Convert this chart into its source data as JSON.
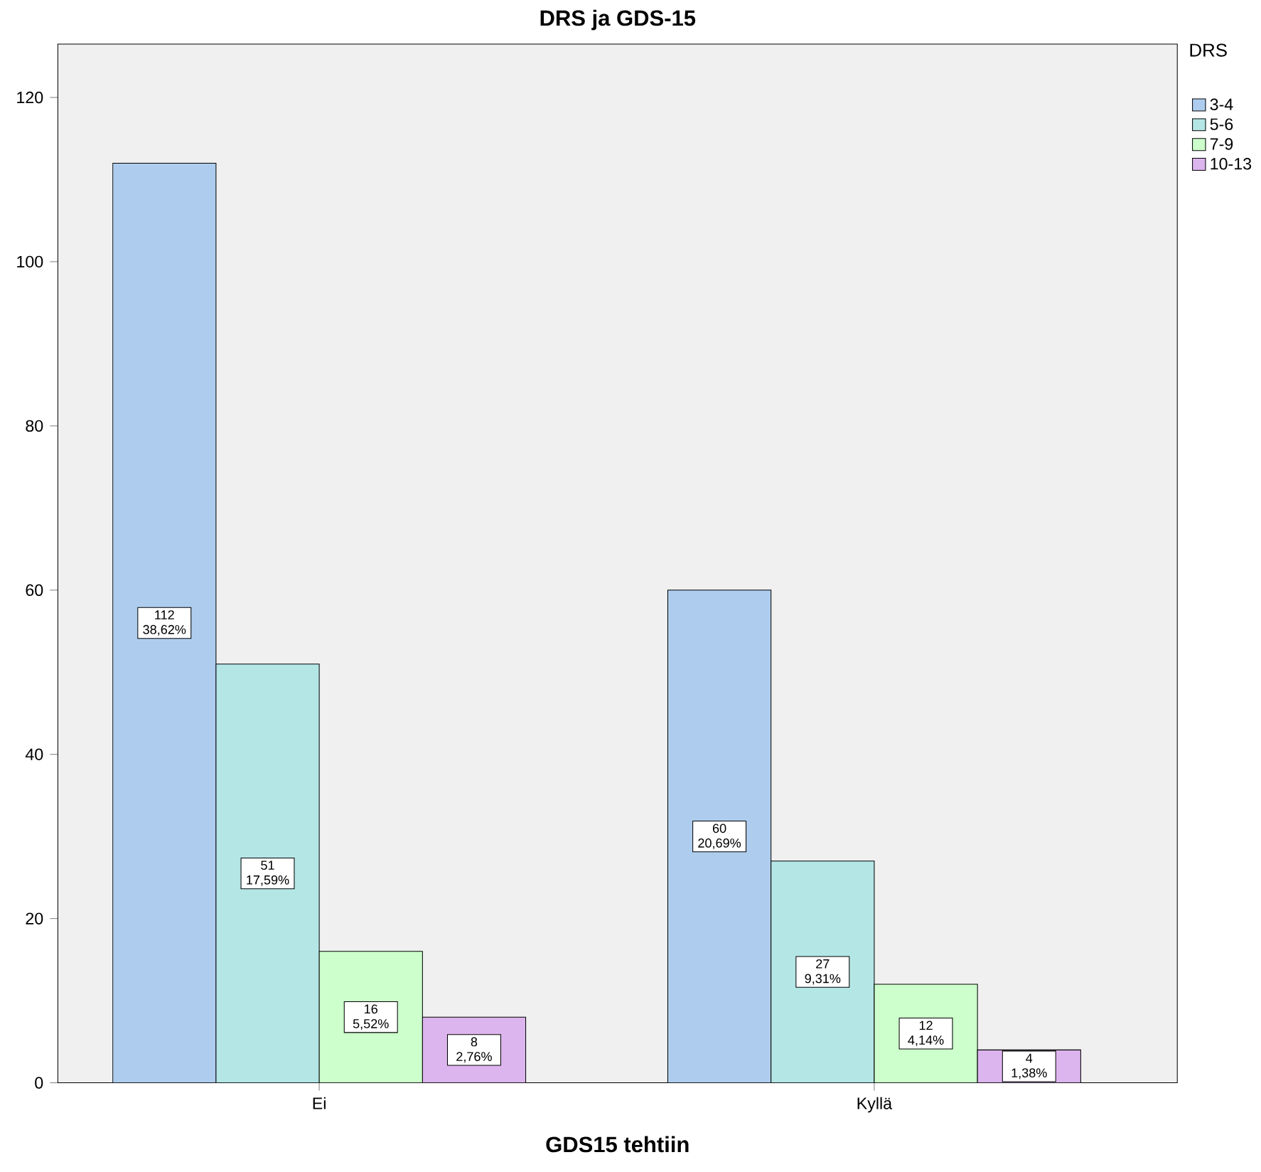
{
  "chart_data": {
    "type": "bar",
    "title": "DRS ja GDS-15",
    "xlabel": "GDS15 tehtiin",
    "legend_title": "DRS",
    "categories": [
      "Ei",
      "Kyllä"
    ],
    "series": [
      {
        "name": "3-4",
        "color": "#aecdee",
        "values": [
          112,
          60
        ],
        "value_labels": [
          "112 38,62%",
          "60 20,69%"
        ]
      },
      {
        "name": "5-6",
        "color": "#b4e6e6",
        "values": [
          51,
          27
        ],
        "value_labels": [
          "51 17,59%",
          "27 9,31%"
        ]
      },
      {
        "name": "7-9",
        "color": "#ccffcc",
        "values": [
          16,
          12
        ],
        "value_labels": [
          "16 5,52%",
          "12 4,14%"
        ]
      },
      {
        "name": "10-13",
        "color": "#dcb4ee",
        "values": [
          8,
          4
        ],
        "value_labels": [
          "8 2,76%",
          "4 1,38%"
        ]
      }
    ],
    "ylim": [
      0,
      126.5
    ],
    "yticks": [
      0,
      20,
      40,
      60,
      80,
      100,
      120
    ],
    "grid": false,
    "legend": "top right"
  }
}
